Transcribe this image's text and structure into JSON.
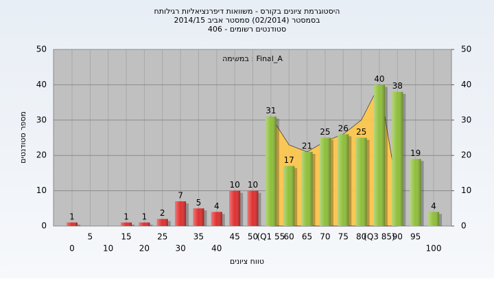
{
  "chart_data": {
    "type": "bar",
    "title": "היסטוגרמת ציונים בקורס - משוואות דיפרנציאליות רגילותח",
    "subtitle": "בסמסטר  (02/2014)  סמסטר אביב 2014/15",
    "subtitle2": "סטודנטים רשומים - 406",
    "annotation": "במשימה : Final_A",
    "ylabel": "מספר סטודנטים",
    "xlabel": "טווח ציונים",
    "categories": [
      "0",
      "5",
      "10",
      "15",
      "20",
      "25",
      "30",
      "35",
      "40",
      "45",
      "50",
      "(Q1 55",
      "60",
      "65",
      "70",
      "75",
      "80",
      "(Q3 85)",
      "90",
      "95",
      "100"
    ],
    "values": [
      1,
      0,
      0,
      1,
      1,
      2,
      7,
      5,
      4,
      10,
      10,
      31,
      17,
      21,
      25,
      26,
      25,
      40,
      38,
      19,
      4
    ],
    "colors": [
      "#e03030",
      "#e03030",
      "#e03030",
      "#e03030",
      "#e03030",
      "#e03030",
      "#e03030",
      "#e03030",
      "#e03030",
      "#e03030",
      "#e03030",
      "#8fbf3a",
      "#8fbf3a",
      "#8fbf3a",
      "#8fbf3a",
      "#8fbf3a",
      "#8fbf3a",
      "#8fbf3a",
      "#8fbf3a",
      "#8fbf3a",
      "#8fbf3a"
    ],
    "overlay": {
      "color": "#ffc84a",
      "values": [
        null,
        null,
        null,
        null,
        null,
        null,
        null,
        null,
        null,
        null,
        null,
        31,
        23,
        21,
        24,
        26,
        30,
        40,
        10,
        null,
        null
      ]
    },
    "ylim": [
      0,
      50
    ],
    "yticks": [
      0,
      10,
      20,
      30,
      40,
      50
    ],
    "y2lim": [
      0,
      50
    ],
    "y2ticks": [
      0,
      10,
      20,
      30,
      40,
      50
    ],
    "grid": true
  }
}
